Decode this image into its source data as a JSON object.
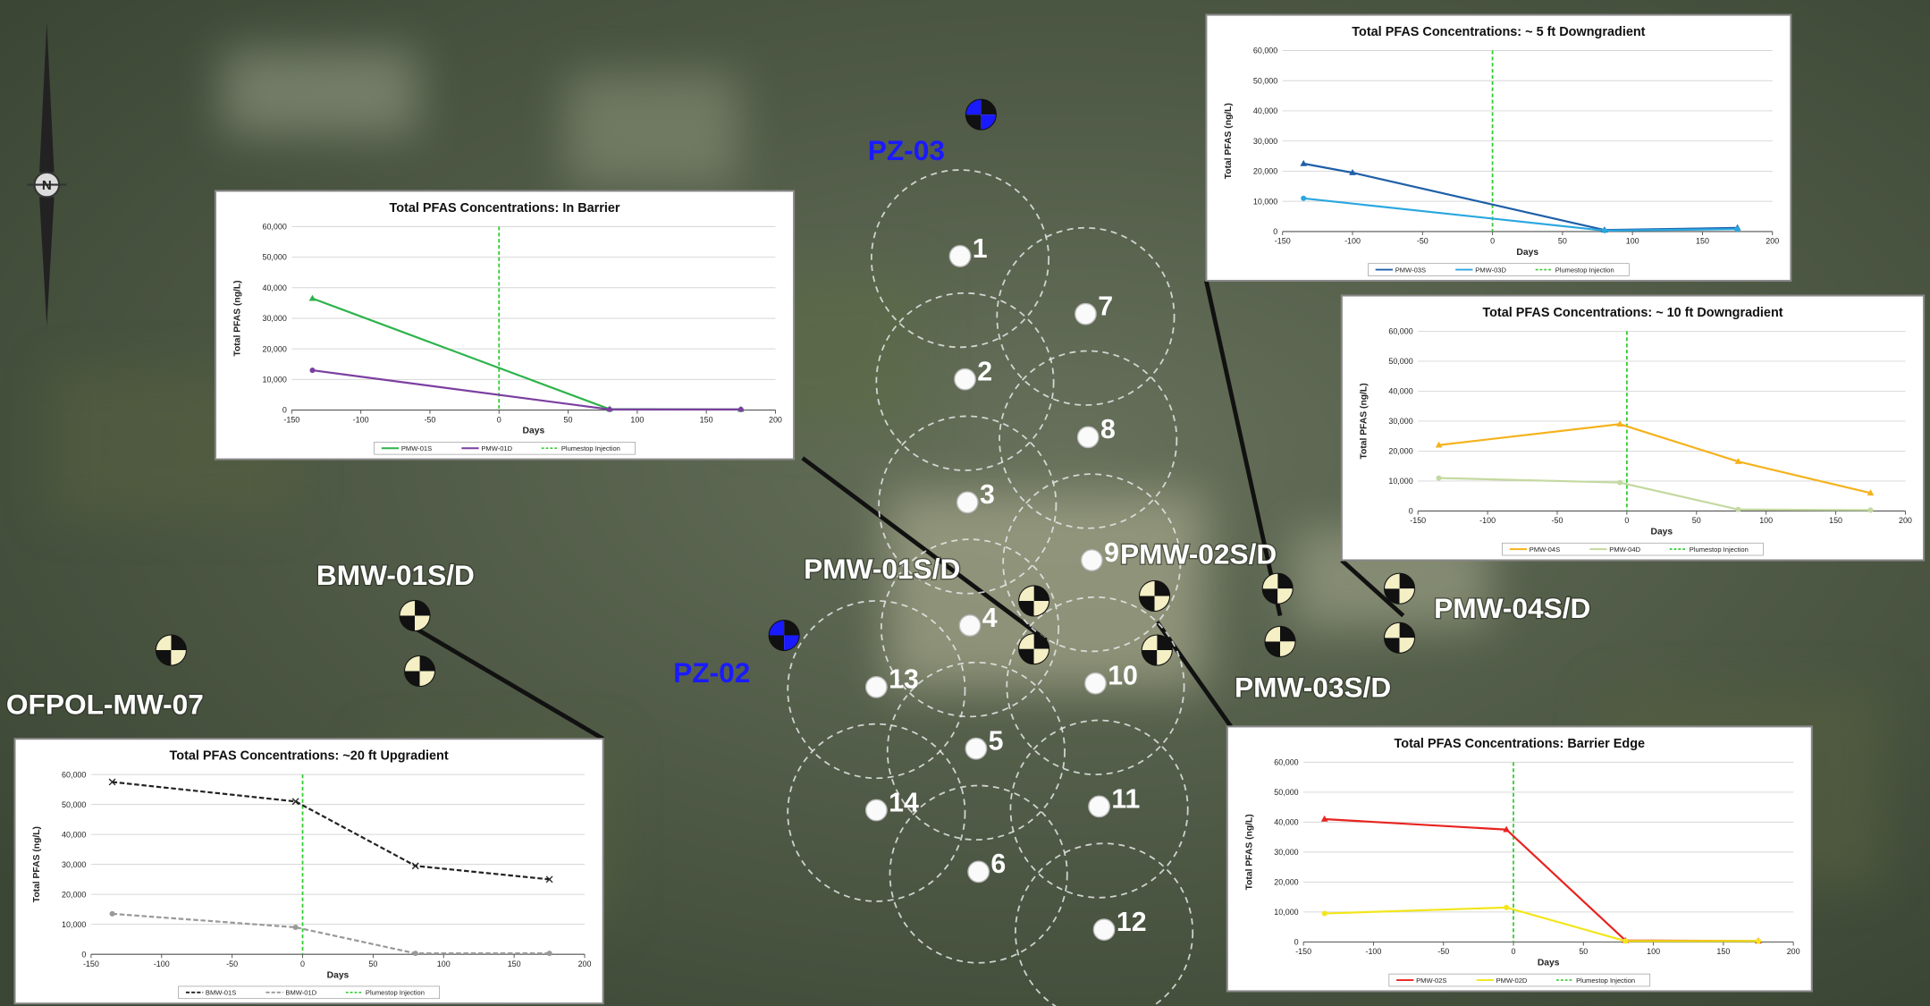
{
  "map": {
    "north_label": "N",
    "injection_points": [
      "1",
      "2",
      "3",
      "4",
      "5",
      "6",
      "7",
      "8",
      "9",
      "10",
      "11",
      "12",
      "13",
      "14"
    ],
    "wells": [
      {
        "label": "PZ-03",
        "kind": "piezometer"
      },
      {
        "label": "PZ-02",
        "kind": "piezometer"
      },
      {
        "label": "BMW-01S/D",
        "kind": "monitoring"
      },
      {
        "label": "OFPOL-MW-07",
        "kind": "monitoring"
      },
      {
        "label": "PMW-01S/D",
        "kind": "monitoring"
      },
      {
        "label": "PMW-02S/D",
        "kind": "monitoring"
      },
      {
        "label": "PMW-03S/D",
        "kind": "monitoring"
      },
      {
        "label": "PMW-04S/D",
        "kind": "monitoring"
      }
    ]
  },
  "chart_data": [
    {
      "type": "line",
      "title": "Total PFAS Concentrations: In Barrier",
      "x_label": "Days",
      "y_label": "Total PFAS (ng/L)",
      "xlim": [
        -150,
        200
      ],
      "xticks": [
        -150,
        -100,
        -50,
        0,
        50,
        100,
        150,
        200
      ],
      "ylim": [
        0,
        60000
      ],
      "yticks": [
        0,
        {
          "value": 10000,
          "label": "10,000"
        },
        {
          "value": 20000,
          "label": "20,000"
        },
        {
          "value": 30000,
          "label": "30,000"
        },
        {
          "value": 40000,
          "label": "40,000"
        },
        {
          "value": 50000,
          "label": "50,000"
        },
        {
          "value": 60000,
          "label": "60,000"
        }
      ],
      "grid": true,
      "series": [
        {
          "name": "PMW-01S",
          "color": "#2db34a",
          "marker": "triangle",
          "line_style": "solid",
          "x": [
            -135,
            80,
            175
          ],
          "values": [
            36500,
            300,
            200
          ]
        },
        {
          "name": "PMW-01D",
          "color": "#7b3fa0",
          "marker": "circle",
          "line_style": "solid",
          "x": [
            -135,
            80,
            175
          ],
          "values": [
            13000,
            200,
            200
          ]
        }
      ],
      "injection": {
        "name": "Plumestop Injection",
        "x": 0,
        "color": "#33cc33"
      }
    },
    {
      "type": "line",
      "title": "Total PFAS Concentrations: ~ 5 ft Downgradient",
      "x_label": "Days",
      "y_label": "Total PFAS (ng/L)",
      "xlim": [
        -150,
        200
      ],
      "xticks": [
        -150,
        -100,
        -50,
        0,
        50,
        100,
        150,
        200
      ],
      "ylim": [
        0,
        60000
      ],
      "yticks": [
        0,
        {
          "value": 10000,
          "label": "10,000"
        },
        {
          "value": 20000,
          "label": "20,000"
        },
        {
          "value": 30000,
          "label": "30,000"
        },
        {
          "value": 40000,
          "label": "40,000"
        },
        {
          "value": 50000,
          "label": "50,000"
        },
        {
          "value": 60000,
          "label": "60,000"
        }
      ],
      "grid": true,
      "series": [
        {
          "name": "PMW-03S",
          "color": "#1f5fa8",
          "marker": "triangle",
          "line_style": "solid",
          "x": [
            -135,
            -100,
            80,
            175
          ],
          "values": [
            22500,
            19500,
            500,
            1200
          ]
        },
        {
          "name": "PMW-03D",
          "color": "#2aa7e0",
          "marker": "circle",
          "line_style": "solid",
          "x": [
            -135,
            80,
            175
          ],
          "values": [
            11000,
            300,
            800
          ]
        }
      ],
      "injection": {
        "name": "Plumestop Injection",
        "x": 0,
        "color": "#33cc33"
      }
    },
    {
      "type": "line",
      "title": "Total PFAS Concentrations: ~ 10 ft Downgradient",
      "x_label": "Days",
      "y_label": "Total PFAS (ng/L)",
      "xlim": [
        -150,
        200
      ],
      "xticks": [
        -150,
        -100,
        -50,
        0,
        50,
        100,
        150,
        200
      ],
      "ylim": [
        0,
        60000
      ],
      "yticks": [
        0,
        {
          "value": 10000,
          "label": "10,000"
        },
        {
          "value": 20000,
          "label": "20,000"
        },
        {
          "value": 30000,
          "label": "30,000"
        },
        {
          "value": 40000,
          "label": "40,000"
        },
        {
          "value": 50000,
          "label": "50,000"
        },
        {
          "value": 60000,
          "label": "60,000"
        }
      ],
      "grid": true,
      "series": [
        {
          "name": "PMW-04S",
          "color": "#f5b21c",
          "marker": "triangle",
          "line_style": "solid",
          "x": [
            -135,
            -5,
            80,
            175
          ],
          "values": [
            22000,
            29000,
            16500,
            6000
          ]
        },
        {
          "name": "PMW-04D",
          "color": "#c4d9a0",
          "marker": "circle",
          "line_style": "solid",
          "x": [
            -135,
            -5,
            80,
            175
          ],
          "values": [
            11000,
            9500,
            500,
            300
          ]
        }
      ],
      "injection": {
        "name": "Plumestop Injection",
        "x": 0,
        "color": "#33cc33"
      }
    },
    {
      "type": "line",
      "title": "Total PFAS Concentrations: ~20 ft Upgradient",
      "x_label": "Days",
      "y_label": "Total PFAS (ng/L)",
      "xlim": [
        -150,
        200
      ],
      "xticks": [
        -150,
        -100,
        -50,
        0,
        50,
        100,
        150,
        200
      ],
      "ylim": [
        0,
        60000
      ],
      "yticks": [
        0,
        {
          "value": 10000,
          "label": "10,000"
        },
        {
          "value": 20000,
          "label": "20,000"
        },
        {
          "value": 30000,
          "label": "30,000"
        },
        {
          "value": 40000,
          "label": "40,000"
        },
        {
          "value": 50000,
          "label": "50,000"
        },
        {
          "value": 60000,
          "label": "60,000"
        }
      ],
      "grid": true,
      "series": [
        {
          "name": "BMW-01S",
          "color": "#222222",
          "marker": "cross",
          "line_style": "dashed",
          "x": [
            -135,
            -5,
            80,
            175
          ],
          "values": [
            57500,
            51000,
            29500,
            25000
          ]
        },
        {
          "name": "BMW-01D",
          "color": "#999999",
          "marker": "circle",
          "line_style": "dashed",
          "x": [
            -135,
            -5,
            80,
            175
          ],
          "values": [
            13500,
            9000,
            300,
            300
          ]
        }
      ],
      "injection": {
        "name": "Plumestop Injection",
        "x": 0,
        "color": "#33cc33"
      }
    },
    {
      "type": "line",
      "title": "Total PFAS Concentrations: Barrier Edge",
      "x_label": "Days",
      "y_label": "Total PFAS (ng/L)",
      "xlim": [
        -150,
        200
      ],
      "xticks": [
        -150,
        -100,
        -50,
        0,
        50,
        100,
        150,
        200
      ],
      "ylim": [
        0,
        60000
      ],
      "yticks": [
        0,
        {
          "value": 10000,
          "label": "10,000"
        },
        {
          "value": 20000,
          "label": "20,000"
        },
        {
          "value": 30000,
          "label": "30,000"
        },
        {
          "value": 40000,
          "label": "40,000"
        },
        {
          "value": 50000,
          "label": "50,000"
        },
        {
          "value": 60000,
          "label": "60,000"
        }
      ],
      "grid": true,
      "series": [
        {
          "name": "PMW-02S",
          "color": "#e8231f",
          "marker": "triangle",
          "line_style": "solid",
          "x": [
            -135,
            -5,
            80,
            175
          ],
          "values": [
            41000,
            37500,
            500,
            300
          ]
        },
        {
          "name": "PMW-02D",
          "color": "#f2e61c",
          "marker": "circle",
          "line_style": "solid",
          "x": [
            -135,
            -5,
            80,
            175
          ],
          "values": [
            9500,
            11500,
            300,
            300
          ]
        }
      ],
      "injection": {
        "name": "Plumestop Injection",
        "x": 0,
        "color": "#33cc33"
      }
    }
  ]
}
